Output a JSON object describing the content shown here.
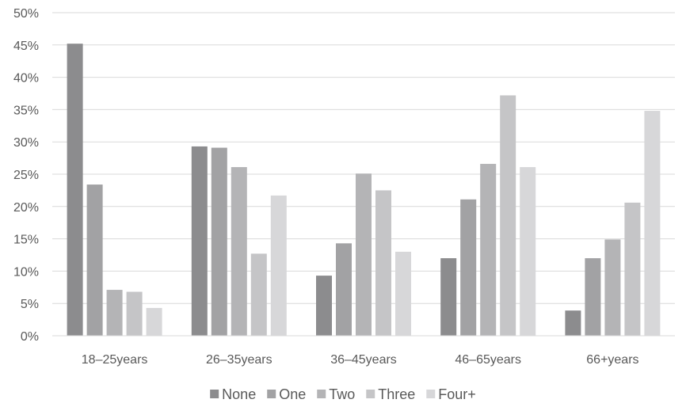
{
  "chart_data": {
    "type": "bar",
    "categories": [
      "18–25years",
      "26–35years",
      "36–45years",
      "46–65years",
      "66+years"
    ],
    "series": [
      {
        "name": "None",
        "color": "#8c8c8e",
        "values": [
          45.2,
          29.3,
          9.3,
          12.0,
          3.9
        ]
      },
      {
        "name": "One",
        "color": "#a2a2a4",
        "values": [
          23.4,
          29.1,
          14.3,
          21.1,
          12.0
        ]
      },
      {
        "name": "Two",
        "color": "#b4b4b6",
        "values": [
          7.1,
          26.1,
          25.1,
          26.6,
          14.9
        ]
      },
      {
        "name": "Three",
        "color": "#c5c5c7",
        "values": [
          6.8,
          12.7,
          22.5,
          37.2,
          20.6
        ]
      },
      {
        "name": "Four+",
        "color": "#d7d7d9",
        "values": [
          4.3,
          21.7,
          13.0,
          26.1,
          34.8
        ]
      }
    ],
    "y_ticks": [
      "0%",
      "5%",
      "10%",
      "15%",
      "20%",
      "25%",
      "30%",
      "35%",
      "40%",
      "45%",
      "50%"
    ],
    "ylim": [
      0,
      50
    ],
    "y_unit": "%",
    "grid": true,
    "legend_position": "bottom-center",
    "title": "",
    "xlabel": "",
    "ylabel": ""
  }
}
